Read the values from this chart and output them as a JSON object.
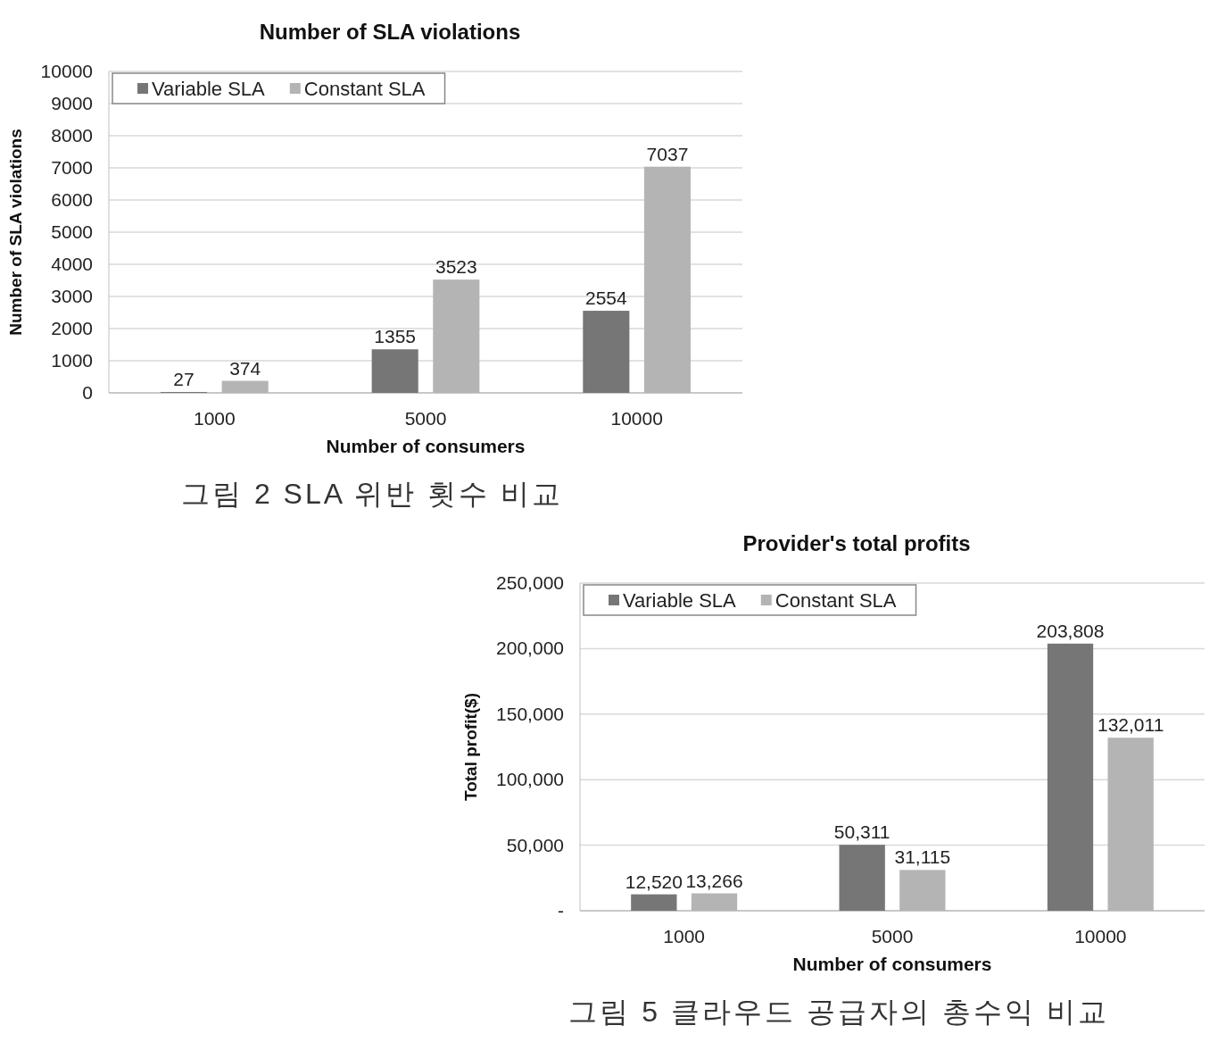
{
  "chart_data": [
    {
      "type": "bar",
      "title": "Number of SLA violations",
      "xlabel": "Number of consumers",
      "ylabel": "Number of SLA violations",
      "categories": [
        "1000",
        "5000",
        "10000"
      ],
      "series": [
        {
          "name": "Variable SLA",
          "color": "#767676",
          "values": [
            27,
            1355,
            2554
          ]
        },
        {
          "name": "Constant SLA",
          "color": "#b4b4b4",
          "values": [
            374,
            3523,
            7037
          ]
        }
      ],
      "ylim": [
        0,
        10000
      ],
      "yticks": [
        0,
        1000,
        2000,
        3000,
        4000,
        5000,
        6000,
        7000,
        8000,
        9000,
        10000
      ],
      "grid": "y",
      "legend": "top left",
      "data_labels": true,
      "annotations": [
        "그림 2 SLA 위반 횟수 비교"
      ]
    },
    {
      "type": "bar",
      "title": "Provider's total profits",
      "xlabel": "Number of consumers",
      "ylabel": "Total profit($)",
      "categories": [
        "1000",
        "5000",
        "10000"
      ],
      "series": [
        {
          "name": "Variable SLA",
          "color": "#767676",
          "values": [
            12520,
            50311,
            203808
          ],
          "value_labels": [
            "12,520",
            "50,311",
            "203,808"
          ]
        },
        {
          "name": "Constant SLA",
          "color": "#b4b4b4",
          "values": [
            13266,
            31115,
            132011
          ],
          "value_labels": [
            "13,266",
            "31,115",
            "132,011"
          ]
        }
      ],
      "ylim": [
        0,
        250000
      ],
      "yticks": [
        {
          "value": 0,
          "label": "-"
        },
        {
          "value": 50000,
          "label": "50,000"
        },
        {
          "value": 100000,
          "label": "100,000"
        },
        {
          "value": 150000,
          "label": "150,000"
        },
        {
          "value": 200000,
          "label": "200,000"
        },
        {
          "value": 250000,
          "label": "250,000"
        }
      ],
      "grid": "y",
      "legend": "top left",
      "annotations": [
        "그림 5 클라우드 공급자의 총수익 비교"
      ]
    }
  ]
}
